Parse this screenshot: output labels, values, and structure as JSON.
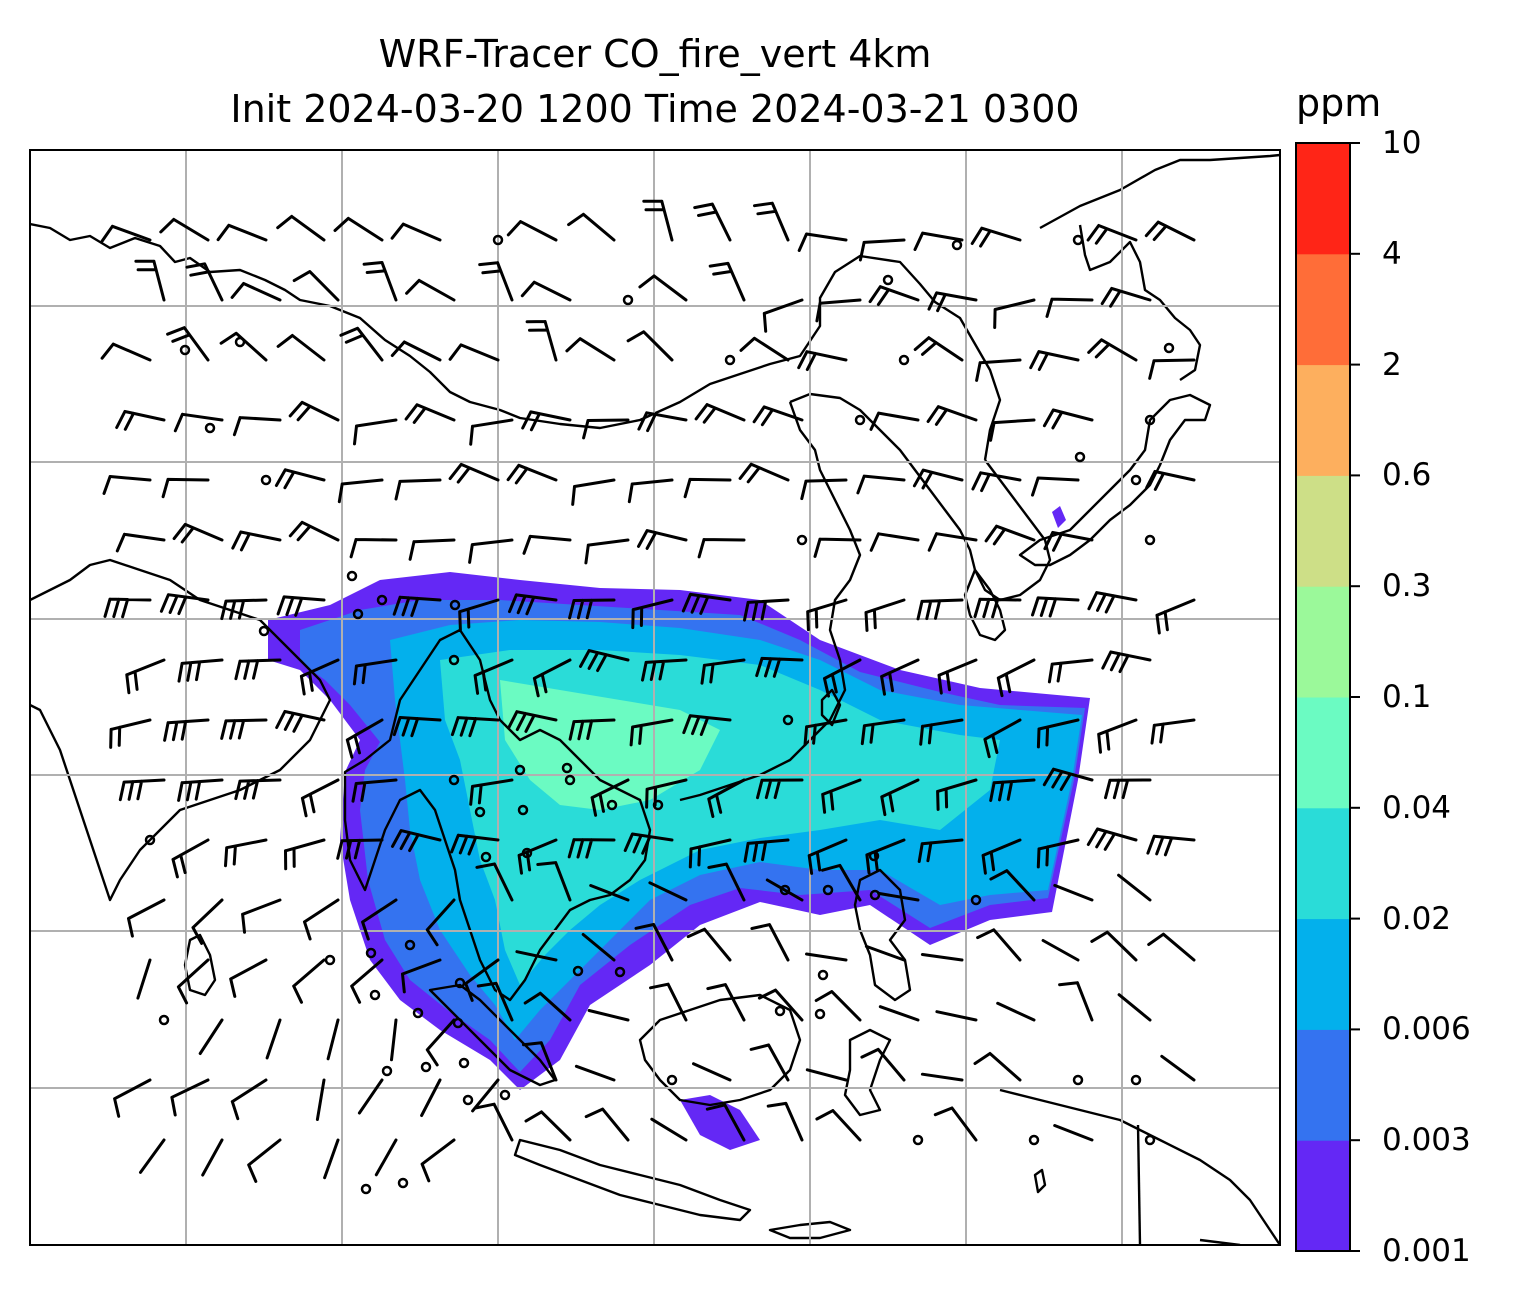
{
  "title": {
    "line1": "WRF-Tracer CO_fire_vert 4km",
    "line2": "Init 2024-03-20 1200 Time 2024-03-21 0300"
  },
  "colorbar": {
    "unit": "ppm",
    "levels": [
      "0.001",
      "0.003",
      "0.006",
      "0.02",
      "0.04",
      "0.1",
      "0.3",
      "0.6",
      "2",
      "4",
      "10"
    ],
    "colors": [
      "#6428f5",
      "#3473f0",
      "#03b0ec",
      "#2adcd8",
      "#6bfbc2",
      "#9bf99a",
      "#cddf87",
      "#fdaf5e",
      "#ff6d38",
      "#ff2517"
    ]
  },
  "map": {
    "field": "CO_fire_vert",
    "level": "4km",
    "plume_color_low": "#6428f5",
    "plume_color_mid": "#03b0ec",
    "plume_color_high": "#6bfbc2",
    "gridline_color": "#b0b0b0",
    "coastline_color": "#000000",
    "wind_barb_color": "#000000"
  }
}
